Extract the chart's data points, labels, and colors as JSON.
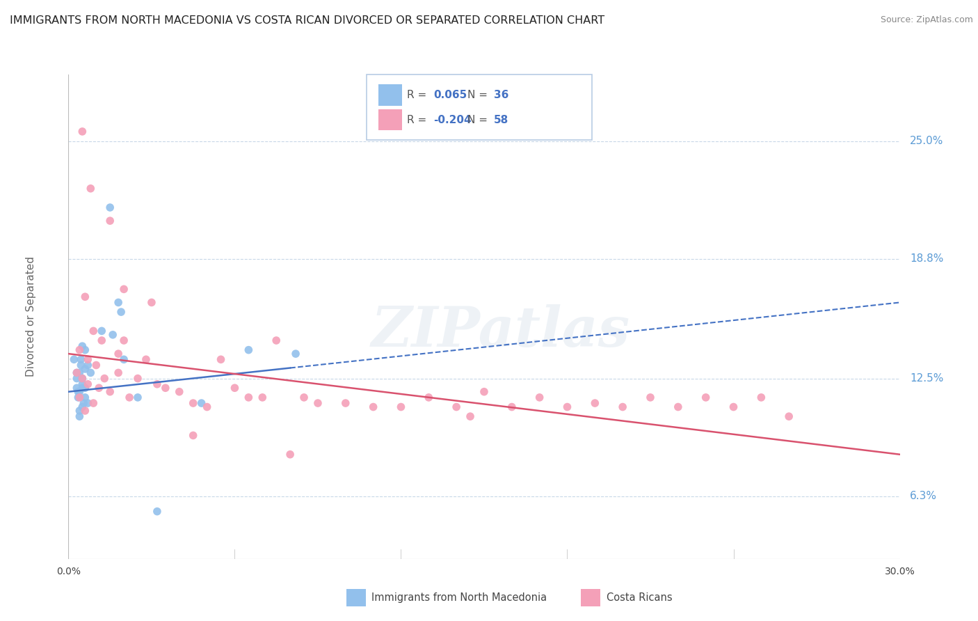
{
  "title": "IMMIGRANTS FROM NORTH MACEDONIA VS COSTA RICAN DIVORCED OR SEPARATED CORRELATION CHART",
  "source": "Source: ZipAtlas.com",
  "ylabel": "Divorced or Separated",
  "xlim": [
    0.0,
    30.0
  ],
  "ylim": [
    3.0,
    28.5
  ],
  "yticks": [
    6.3,
    12.5,
    18.8,
    25.0
  ],
  "ytick_labels": [
    "6.3%",
    "12.5%",
    "18.8%",
    "25.0%"
  ],
  "legend_blue_r": "0.065",
  "legend_blue_n": "36",
  "legend_pink_r": "-0.204",
  "legend_pink_n": "58",
  "blue_color": "#92c0ec",
  "pink_color": "#f4a0b8",
  "blue_line_color": "#4472c4",
  "pink_line_color": "#d9526e",
  "grid_color": "#c8d8e8",
  "blue_trend_x": [
    0.0,
    30.0
  ],
  "blue_trend_y": [
    11.8,
    16.5
  ],
  "pink_trend_x": [
    0.0,
    30.0
  ],
  "pink_trend_y": [
    13.8,
    8.5
  ],
  "blue_scatter_x": [
    0.3,
    0.5,
    0.7,
    0.4,
    0.6,
    0.2,
    0.8,
    0.35,
    0.5,
    0.6,
    0.4,
    0.7,
    0.3,
    0.5,
    0.45,
    0.6,
    0.35,
    0.5,
    0.4,
    0.55,
    0.3,
    0.45,
    0.6,
    0.4,
    0.5,
    1.5,
    1.8,
    1.2,
    2.0,
    1.6,
    6.5,
    8.2,
    4.8,
    2.5,
    1.9,
    3.2
  ],
  "blue_scatter_y": [
    12.5,
    12.0,
    13.2,
    11.8,
    14.0,
    13.5,
    12.8,
    11.5,
    12.2,
    13.0,
    10.8,
    11.2,
    12.8,
    11.0,
    13.5,
    12.0,
    11.8,
    12.5,
    10.5,
    11.2,
    12.0,
    13.2,
    11.5,
    12.8,
    14.2,
    21.5,
    16.5,
    15.0,
    13.5,
    14.8,
    14.0,
    13.8,
    11.2,
    11.5,
    16.0,
    5.5
  ],
  "pink_scatter_x": [
    0.5,
    0.8,
    1.5,
    2.0,
    0.6,
    0.9,
    1.2,
    0.4,
    0.7,
    1.0,
    1.8,
    2.5,
    3.0,
    0.3,
    0.5,
    0.7,
    1.1,
    1.5,
    2.0,
    2.8,
    3.5,
    4.5,
    5.5,
    6.5,
    7.5,
    8.5,
    10.0,
    12.0,
    14.0,
    16.0,
    18.0,
    20.0,
    22.0,
    24.0,
    26.0,
    0.4,
    0.6,
    0.9,
    1.3,
    1.8,
    2.2,
    3.2,
    4.0,
    5.0,
    6.0,
    7.0,
    9.0,
    11.0,
    13.0,
    15.0,
    17.0,
    19.0,
    21.0,
    23.0,
    25.0,
    4.5,
    8.0,
    14.5
  ],
  "pink_scatter_y": [
    25.5,
    22.5,
    20.8,
    17.2,
    16.8,
    15.0,
    14.5,
    14.0,
    13.5,
    13.2,
    12.8,
    12.5,
    16.5,
    12.8,
    12.5,
    12.2,
    12.0,
    11.8,
    14.5,
    13.5,
    12.0,
    11.2,
    13.5,
    11.5,
    14.5,
    11.5,
    11.2,
    11.0,
    11.0,
    11.0,
    11.0,
    11.0,
    11.0,
    11.0,
    10.5,
    11.5,
    10.8,
    11.2,
    12.5,
    13.8,
    11.5,
    12.2,
    11.8,
    11.0,
    12.0,
    11.5,
    11.2,
    11.0,
    11.5,
    11.8,
    11.5,
    11.2,
    11.5,
    11.5,
    11.5,
    9.5,
    8.5,
    10.5
  ]
}
